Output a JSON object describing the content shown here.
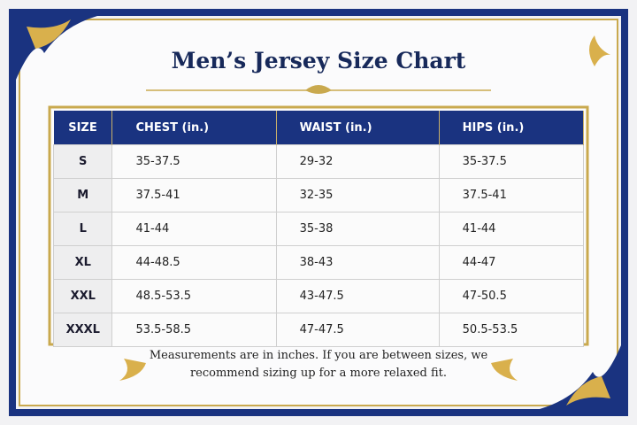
{
  "header": {
    "title": "Men’s Jersey Size Chart"
  },
  "table": {
    "columns": [
      "SIZE",
      "CHEST (in.)",
      "WAIST (in.)",
      "HIPS (in.)"
    ],
    "rows": [
      [
        "S",
        "35-37.5",
        "29-32",
        "35-37.5"
      ],
      [
        "M",
        "37.5-41",
        "32-35",
        "37.5-41"
      ],
      [
        "L",
        "41-44",
        "35-38",
        "41-44"
      ],
      [
        "XL",
        "44-48.5",
        "38-43",
        "44-47"
      ],
      [
        "XXL",
        "48.5-53.5",
        "43-47.5",
        "47-50.5"
      ],
      [
        "XXXL",
        "53.5-58.5",
        "47-47.5",
        "50.5-53.5"
      ]
    ]
  },
  "footnote": [
    "Measurements are in inches. If you are between sizes, we",
    "recommend sizing up for a more relaxed fit."
  ]
}
